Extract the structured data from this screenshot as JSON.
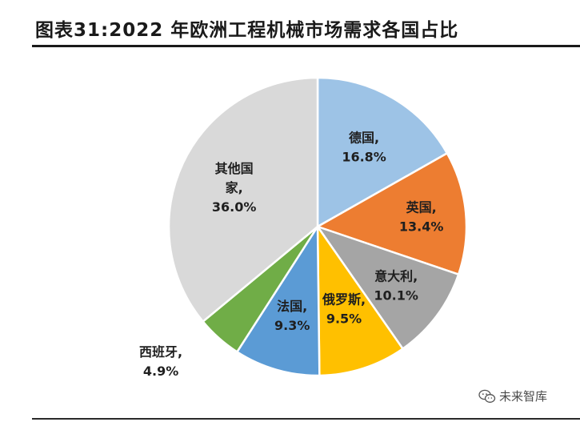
{
  "title": "图表31:2022 年欧洲工程机械市场需求各国占比",
  "watermark": "未来智库",
  "watermark_icon": "wechat-icon",
  "chart_data": {
    "type": "pie",
    "title": "图表31:2022 年欧洲工程机械市场需求各国占比",
    "legend": "none",
    "slices": [
      {
        "name": "德国",
        "value": 16.8,
        "value_label": "16.8%",
        "label_lines": [
          "德国,",
          "16.8%"
        ],
        "color": "#9DC3E6"
      },
      {
        "name": "英国",
        "value": 13.4,
        "value_label": "13.4%",
        "label_lines": [
          "英国,",
          "13.4%"
        ],
        "color": "#ED7D31"
      },
      {
        "name": "意大利",
        "value": 10.1,
        "value_label": "10.1%",
        "label_lines": [
          "意大利,",
          "10.1%"
        ],
        "color": "#A5A5A5"
      },
      {
        "name": "俄罗斯",
        "value": 9.5,
        "value_label": "9.5%",
        "label_lines": [
          "俄罗斯,",
          "9.5%"
        ],
        "color": "#FFC000"
      },
      {
        "name": "法国",
        "value": 9.3,
        "value_label": "9.3%",
        "label_lines": [
          "法国,",
          "9.3%"
        ],
        "color": "#5B9BD5"
      },
      {
        "name": "西班牙",
        "value": 4.9,
        "value_label": "4.9%",
        "label_lines": [
          "西班牙,",
          "4.9%"
        ],
        "color": "#70AD47"
      },
      {
        "name": "其他国家",
        "value": 36.0,
        "value_label": "36.0%",
        "label_lines": [
          "其他国",
          "家,",
          "36.0%"
        ],
        "color": "#D9D9D9"
      }
    ]
  }
}
